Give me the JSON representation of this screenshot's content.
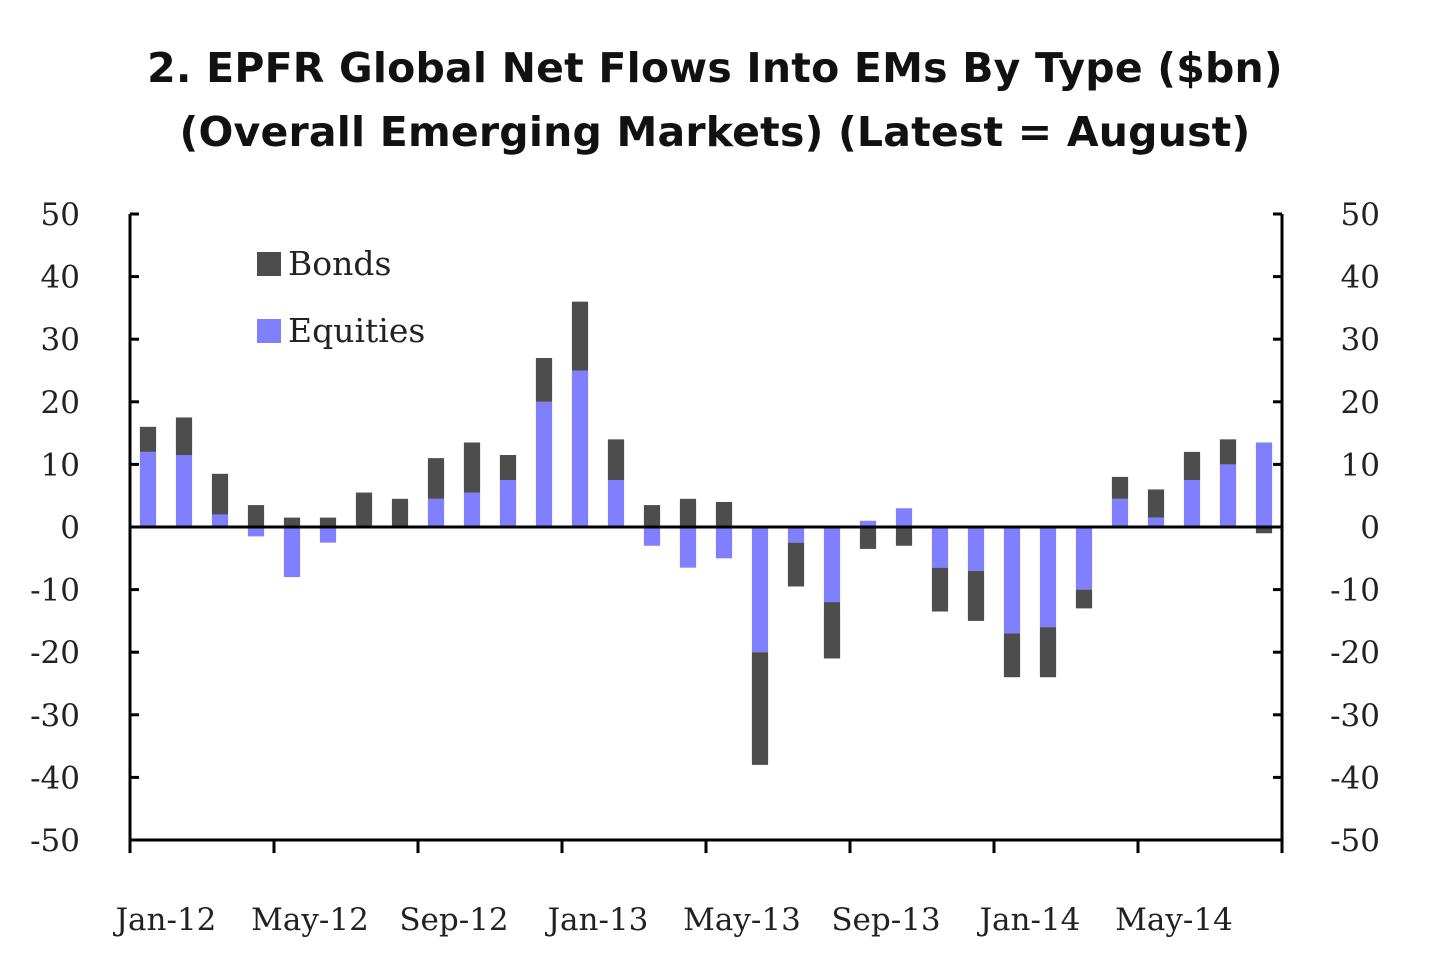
{
  "title_lines": [
    "2. EPFR Global Net Flows Into EMs By Type ($bn)",
    "(Overall Emerging Markets) (Latest = August)"
  ],
  "chart_data": {
    "type": "bar",
    "stacked": true,
    "title": "2. EPFR Global Net Flows Into EMs By Type ($bn) (Overall Emerging Markets) (Latest = August)",
    "categories": [
      "Jan-12",
      "Feb-12",
      "Mar-12",
      "Apr-12",
      "May-12",
      "Jun-12",
      "Jul-12",
      "Aug-12",
      "Sep-12",
      "Oct-12",
      "Nov-12",
      "Dec-12",
      "Jan-13",
      "Feb-13",
      "Mar-13",
      "Apr-13",
      "May-13",
      "Jun-13",
      "Jul-13",
      "Aug-13",
      "Sep-13",
      "Oct-13",
      "Nov-13",
      "Dec-13",
      "Jan-14",
      "Feb-14",
      "Mar-14",
      "Apr-14",
      "May-14",
      "Jun-14",
      "Jul-14",
      "Aug-14"
    ],
    "x_tick_labels": [
      "Jan-12",
      "May-12",
      "Sep-12",
      "Jan-13",
      "May-13",
      "Sep-13",
      "Jan-14",
      "May-14"
    ],
    "series": [
      {
        "name": "Equities",
        "color": "#8080ff",
        "values": [
          12,
          11.5,
          2,
          -1.5,
          -8,
          -2.5,
          0,
          0,
          4.5,
          5.5,
          7.5,
          20,
          25,
          7.5,
          -3,
          -6.5,
          -5,
          -20,
          -2.5,
          -12,
          1,
          3,
          -6.5,
          -7,
          -17,
          -16,
          -10,
          4.5,
          1.5,
          7.5,
          10,
          13.5
        ]
      },
      {
        "name": "Bonds",
        "color": "#4d4d4d",
        "values": [
          4,
          6,
          6.5,
          3.5,
          1.5,
          1.5,
          5.5,
          4.5,
          6.5,
          8,
          4,
          7,
          11,
          6.5,
          3.5,
          4.5,
          4,
          -18,
          -7,
          -9,
          -3.5,
          -3,
          -7,
          -8,
          -7,
          -8,
          -3,
          3.5,
          4.5,
          4.5,
          4,
          -1
        ]
      }
    ],
    "ylim": [
      -50,
      50
    ],
    "yticks": [
      -50,
      -40,
      -30,
      -20,
      -10,
      0,
      10,
      20,
      30,
      40,
      50
    ],
    "y_axis": "both",
    "legend_position": "top-left",
    "grid": false
  }
}
